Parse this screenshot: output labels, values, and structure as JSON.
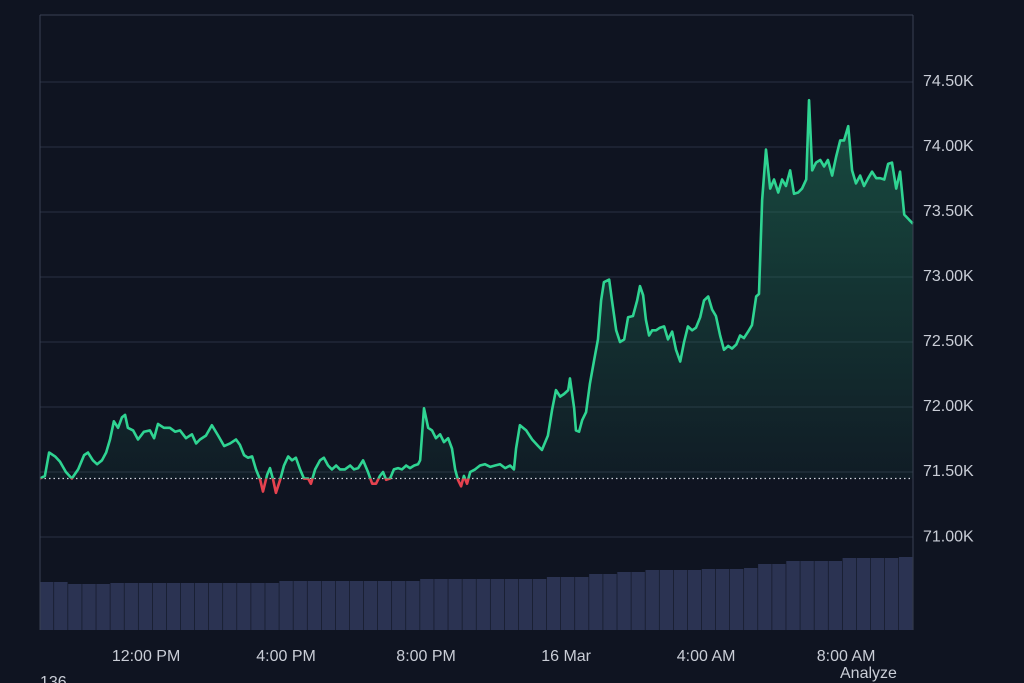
{
  "chart_data": {
    "type": "line",
    "x": [
      8.97,
      9.11,
      9.23,
      9.4,
      9.54,
      9.71,
      9.88,
      10.06,
      10.23,
      10.34,
      10.48,
      10.6,
      10.74,
      10.86,
      10.97,
      11.08,
      11.2,
      11.31,
      11.4,
      11.48,
      11.63,
      11.77,
      11.94,
      12.11,
      12.23,
      12.34,
      12.51,
      12.68,
      12.83,
      12.97,
      13.14,
      13.31,
      13.43,
      13.54,
      13.71,
      13.88,
      14.06,
      14.23,
      14.4,
      14.57,
      14.68,
      14.8,
      14.91,
      15.03,
      15.14,
      15.26,
      15.34,
      15.46,
      15.54,
      15.63,
      15.71,
      15.83,
      15.94,
      16.06,
      16.17,
      16.28,
      16.4,
      16.51,
      16.63,
      16.71,
      16.83,
      16.97,
      17.08,
      17.2,
      17.31,
      17.43,
      17.54,
      17.68,
      17.83,
      17.94,
      18.06,
      18.2,
      18.34,
      18.46,
      18.57,
      18.68,
      18.77,
      18.86,
      18.97,
      19.08,
      19.2,
      19.31,
      19.43,
      19.54,
      19.66,
      19.77,
      19.83,
      19.94,
      20.06,
      20.17,
      20.28,
      20.4,
      20.51,
      20.63,
      20.74,
      20.83,
      20.91,
      21.0,
      21.08,
      21.17,
      21.26,
      21.4,
      21.54,
      21.68,
      21.83,
      21.97,
      22.11,
      22.26,
      22.4,
      22.51,
      22.57,
      22.68,
      22.86,
      23.03,
      23.2,
      23.31,
      23.48,
      23.6,
      23.71,
      23.83,
      23.94,
      24.06,
      24.11,
      24.23,
      24.28,
      24.37,
      24.46,
      24.57,
      24.68,
      24.8,
      24.91,
      25.0,
      25.08,
      25.23,
      25.31,
      25.43,
      25.54,
      25.66,
      25.77,
      25.91,
      26.03,
      26.11,
      26.2,
      26.28,
      26.37,
      26.46,
      26.57,
      26.68,
      26.8,
      26.91,
      27.03,
      27.14,
      27.26,
      27.37,
      27.48,
      27.6,
      27.71,
      27.83,
      27.94,
      28.06,
      28.17,
      28.28,
      28.4,
      28.51,
      28.63,
      28.74,
      28.86,
      28.97,
      29.08,
      29.2,
      29.31,
      29.43,
      29.51,
      29.6,
      29.71,
      29.83,
      29.94,
      30.06,
      30.17,
      30.28,
      30.4,
      30.51,
      30.63,
      30.74,
      30.86,
      30.94,
      31.03,
      31.14,
      31.26,
      31.37,
      31.48,
      31.6,
      31.71,
      31.83,
      31.94,
      32.06,
      32.17,
      32.28,
      32.4,
      32.51,
      32.63,
      32.74,
      32.86,
      32.97,
      33.09,
      33.2,
      33.31,
      33.43,
      33.54,
      33.66,
      33.8,
      33.91
    ],
    "values": [
      71450,
      71470,
      71650,
      71620,
      71580,
      71500,
      71450,
      71520,
      71630,
      71650,
      71590,
      71560,
      71590,
      71650,
      71750,
      71890,
      71840,
      71920,
      71940,
      71840,
      71820,
      71750,
      71810,
      71820,
      71760,
      71870,
      71840,
      71840,
      71810,
      71820,
      71760,
      71790,
      71720,
      71750,
      71780,
      71860,
      71780,
      71700,
      71720,
      71750,
      71710,
      71630,
      71610,
      71620,
      71520,
      71440,
      71350,
      71480,
      71530,
      71440,
      71340,
      71440,
      71550,
      71620,
      71590,
      71610,
      71520,
      71450,
      71450,
      71410,
      71520,
      71590,
      71610,
      71550,
      71520,
      71550,
      71520,
      71520,
      71550,
      71520,
      71530,
      71590,
      71500,
      71410,
      71410,
      71470,
      71500,
      71440,
      71450,
      71520,
      71530,
      71520,
      71550,
      71530,
      71550,
      71560,
      71590,
      71990,
      71840,
      71820,
      71760,
      71790,
      71730,
      71760,
      71680,
      71520,
      71440,
      71390,
      71470,
      71410,
      71500,
      71520,
      71550,
      71560,
      71540,
      71550,
      71560,
      71530,
      71550,
      71520,
      71680,
      71860,
      71820,
      71750,
      71700,
      71670,
      71780,
      71980,
      72130,
      72080,
      72100,
      72130,
      72220,
      71990,
      71820,
      71810,
      71900,
      71960,
      72180,
      72360,
      72520,
      72820,
      72960,
      72980,
      72820,
      72590,
      72500,
      72520,
      72690,
      72700,
      72820,
      72930,
      72860,
      72670,
      72550,
      72590,
      72590,
      72610,
      72620,
      72520,
      72580,
      72440,
      72350,
      72500,
      72620,
      72590,
      72610,
      72690,
      72820,
      72850,
      72750,
      72700,
      72550,
      72440,
      72470,
      72450,
      72480,
      72550,
      72530,
      72580,
      72630,
      72850,
      72870,
      73590,
      73980,
      73680,
      73750,
      73650,
      73750,
      73700,
      73820,
      73640,
      73650,
      73680,
      73750,
      74360,
      73820,
      73880,
      73900,
      73850,
      73900,
      73780,
      73920,
      74050,
      74050,
      74160,
      73820,
      73720,
      73780,
      73700,
      73760,
      73810,
      73760,
      73760,
      73750,
      73870,
      73880,
      73680,
      73810,
      73480,
      73440,
      73410
    ],
    "baseline": 71450,
    "color": "#2fd492",
    "down_color": "#e5424f",
    "xlim": [
      8.97,
      33.91
    ],
    "xticks": [
      {
        "value": 12,
        "label": "12:00 PM"
      },
      {
        "value": 16,
        "label": "4:00 PM"
      },
      {
        "value": 20,
        "label": "8:00 PM"
      },
      {
        "value": 24,
        "label": "16 Mar"
      },
      {
        "value": 28,
        "label": "4:00 AM"
      },
      {
        "value": 32,
        "label": "8:00 AM"
      }
    ],
    "ylim": [
      70285,
      75015
    ],
    "yticks": [
      {
        "value": 71000,
        "label": "71.00K"
      },
      {
        "value": 71500,
        "label": "71.50K"
      },
      {
        "value": 72000,
        "label": "72.00K"
      },
      {
        "value": 72500,
        "label": "72.50K"
      },
      {
        "value": 73000,
        "label": "73.00K"
      },
      {
        "value": 73500,
        "label": "73.50K"
      },
      {
        "value": 74000,
        "label": "74.00K"
      },
      {
        "value": 74500,
        "label": "74.50K"
      }
    ],
    "grid": true,
    "volume": {
      "color": "#2b3352",
      "values": [
        48,
        48,
        46,
        46,
        46,
        47,
        47,
        47,
        47,
        47,
        47,
        47,
        47,
        47,
        47,
        47,
        47,
        49,
        49,
        49,
        49,
        49,
        49,
        49,
        49,
        49,
        49,
        51,
        51,
        51,
        51,
        51,
        51,
        51,
        51,
        51,
        53,
        53,
        53,
        56,
        56,
        58,
        58,
        60,
        60,
        60,
        60,
        61,
        61,
        61,
        62,
        66,
        66,
        69,
        69,
        69,
        69,
        72,
        72,
        72,
        72,
        73
      ]
    },
    "annotations": [
      "136",
      "Analyze"
    ]
  }
}
